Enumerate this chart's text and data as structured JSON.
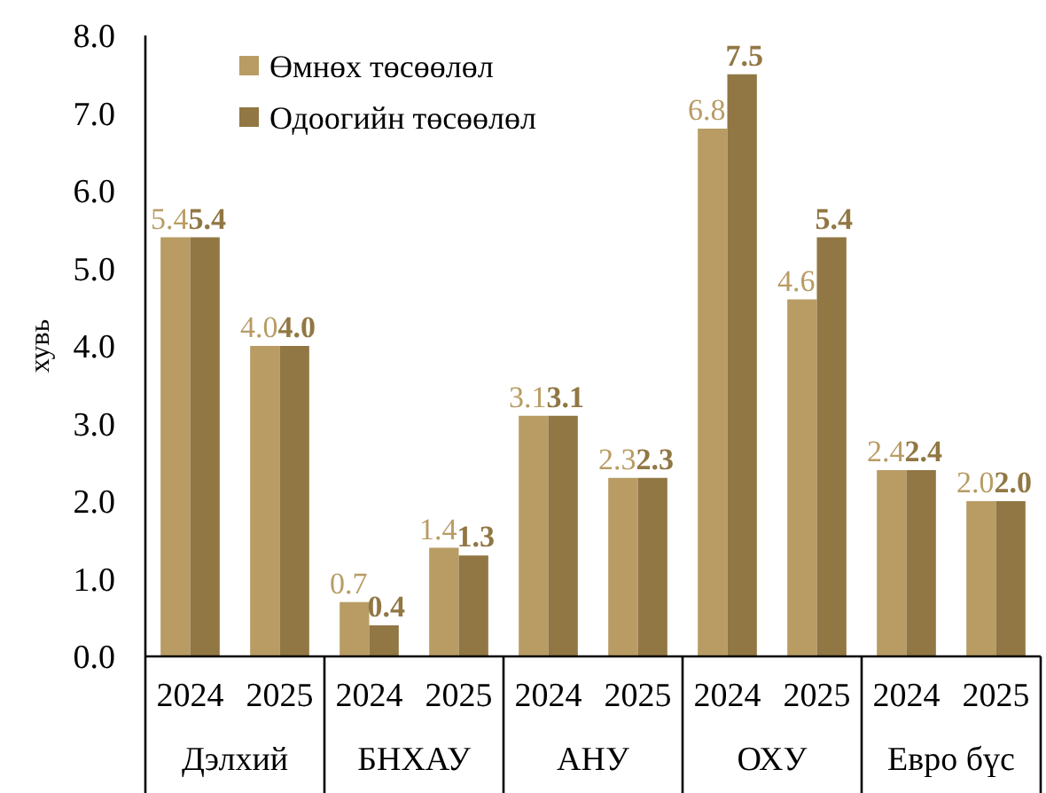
{
  "chart_data": {
    "type": "bar",
    "ylabel": "хувь",
    "categories": [
      "2024",
      "2025",
      "2024",
      "2025",
      "2024",
      "2025",
      "2024",
      "2025",
      "2024",
      "2025"
    ],
    "annotations": [
      "Дэлхий",
      "БНХАУ",
      "АНУ",
      "ОХУ",
      "Евро бүс"
    ],
    "series": [
      {
        "name": "Өмнөх төсөөлөл",
        "color": "#b89c64",
        "values": [
          5.4,
          4.0,
          0.7,
          1.4,
          3.1,
          2.3,
          6.8,
          4.6,
          2.4,
          2.0
        ],
        "value_labels": [
          "5.4",
          "4.0",
          "0.7",
          "1.4",
          "3.1",
          "2.3",
          "6.8",
          "4.6",
          "2.4",
          "2.0"
        ]
      },
      {
        "name": "Одоогийн төсөөлөл",
        "color": "#917744",
        "values": [
          5.4,
          4.0,
          0.4,
          1.3,
          3.1,
          2.3,
          7.5,
          5.4,
          2.4,
          2.0
        ],
        "value_labels": [
          "5.4",
          "4.0",
          "0.4",
          "1.3",
          "3.1",
          "2.3",
          "7.5",
          "5.4",
          "2.4",
          "2.0"
        ]
      }
    ],
    "ylim": [
      0,
      8
    ],
    "yticks": [
      {
        "value": 0,
        "label": "0.0"
      },
      {
        "value": 1,
        "label": "1.0"
      },
      {
        "value": 2,
        "label": "2.0"
      },
      {
        "value": 3,
        "label": "3.0"
      },
      {
        "value": 4,
        "label": "4.0"
      },
      {
        "value": 5,
        "label": "5.0"
      },
      {
        "value": 6,
        "label": "6.0"
      },
      {
        "value": 7,
        "label": "7.0"
      },
      {
        "value": 8,
        "label": "8.0"
      }
    ],
    "grid": false,
    "legend": "top left"
  }
}
